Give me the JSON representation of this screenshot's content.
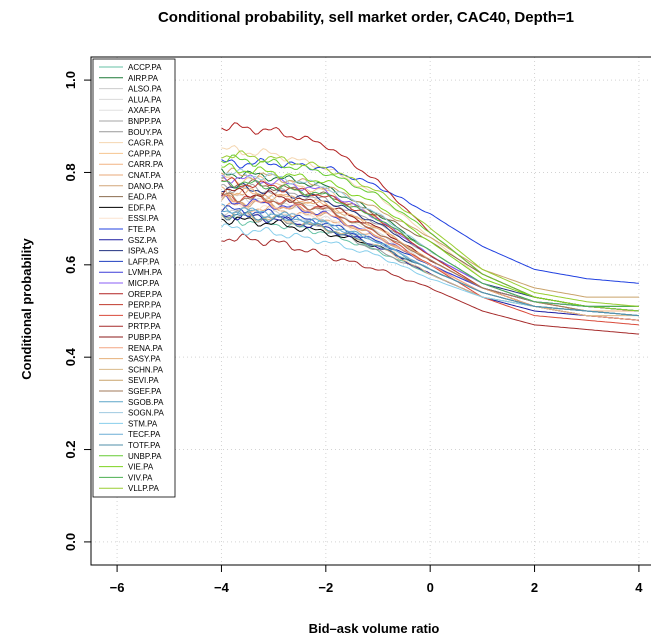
{
  "chart_data": {
    "type": "line",
    "title": "Conditional probability, sell market order, CAC40, Depth=1",
    "xlabel": "Bid–ask volume ratio",
    "ylabel": "Conditional probability",
    "xlim": [
      -6.5,
      4.5
    ],
    "ylim": [
      -0.05,
      1.05
    ],
    "xticks": [
      -6,
      -4,
      -2,
      0,
      2,
      4
    ],
    "yticks": [
      0.0,
      0.2,
      0.4,
      0.6,
      0.8,
      1.0
    ],
    "xtick_labels": [
      "−6",
      "−4",
      "−2",
      "0",
      "2",
      "4"
    ],
    "ytick_labels": [
      "0.0",
      "0.2",
      "0.4",
      "0.6",
      "0.8",
      "1.0"
    ],
    "grid": true,
    "legend_position": "top-left",
    "series": [
      {
        "name": "ACCP.PA",
        "color": "#66c2a5",
        "x": [
          -4,
          -3,
          -2,
          -1,
          0,
          1,
          2,
          3,
          4
        ],
        "y": [
          0.7,
          0.69,
          0.67,
          0.63,
          0.58,
          0.53,
          0.51,
          0.5,
          0.5
        ]
      },
      {
        "name": "AIRP.PA",
        "color": "#1b7837",
        "x": [
          -4,
          -3,
          -2,
          -1,
          0,
          1,
          2,
          3,
          4
        ],
        "y": [
          0.8,
          0.79,
          0.77,
          0.71,
          0.63,
          0.56,
          0.52,
          0.5,
          0.5
        ]
      },
      {
        "name": "ALSO.PA",
        "color": "#cccccc",
        "x": [
          -4,
          -3,
          -2,
          -1,
          0,
          1,
          2,
          3,
          4
        ],
        "y": [
          0.72,
          0.71,
          0.69,
          0.64,
          0.59,
          0.54,
          0.51,
          0.5,
          0.49
        ]
      },
      {
        "name": "ALUA.PA",
        "color": "#d9d9d9",
        "x": [
          -4,
          -3,
          -2,
          -1,
          0,
          1,
          2,
          3,
          4
        ],
        "y": [
          0.75,
          0.74,
          0.72,
          0.67,
          0.6,
          0.54,
          0.51,
          0.5,
          0.49
        ]
      },
      {
        "name": "AXAF.PA",
        "color": "#e0e0e0",
        "x": [
          -4,
          -3,
          -2,
          -1,
          0,
          1,
          2,
          3,
          4
        ],
        "y": [
          0.74,
          0.73,
          0.7,
          0.65,
          0.59,
          0.54,
          0.51,
          0.5,
          0.5
        ]
      },
      {
        "name": "BNPP.PA",
        "color": "#a6a6a6",
        "x": [
          -4,
          -3,
          -2,
          -1,
          0,
          1,
          2,
          3,
          4
        ],
        "y": [
          0.77,
          0.76,
          0.74,
          0.69,
          0.62,
          0.55,
          0.52,
          0.5,
          0.5
        ]
      },
      {
        "name": "BOUY.PA",
        "color": "#999999",
        "x": [
          -4,
          -3,
          -2,
          -1,
          0,
          1,
          2,
          3,
          4
        ],
        "y": [
          0.71,
          0.7,
          0.68,
          0.63,
          0.58,
          0.53,
          0.51,
          0.5,
          0.49
        ]
      },
      {
        "name": "CAGR.PA",
        "color": "#f4d6b0",
        "x": [
          -4,
          -3,
          -2,
          -1,
          0,
          1,
          2,
          3,
          4
        ],
        "y": [
          0.85,
          0.84,
          0.81,
          0.75,
          0.66,
          0.57,
          0.53,
          0.51,
          0.5
        ]
      },
      {
        "name": "CAPP.PA",
        "color": "#f6c48f",
        "x": [
          -4,
          -3,
          -2,
          -1,
          0,
          1,
          2,
          3,
          4
        ],
        "y": [
          0.79,
          0.78,
          0.76,
          0.7,
          0.62,
          0.55,
          0.52,
          0.5,
          0.5
        ]
      },
      {
        "name": "CARR.PA",
        "color": "#f2b482",
        "x": [
          -4,
          -3,
          -2,
          -1,
          0,
          1,
          2,
          3,
          4
        ],
        "y": [
          0.76,
          0.75,
          0.73,
          0.68,
          0.61,
          0.55,
          0.52,
          0.5,
          0.5
        ]
      },
      {
        "name": "CNAT.PA",
        "color": "#e8a878",
        "x": [
          -4,
          -3,
          -2,
          -1,
          0,
          1,
          2,
          3,
          4
        ],
        "y": [
          0.73,
          0.72,
          0.7,
          0.66,
          0.6,
          0.54,
          0.51,
          0.5,
          0.49
        ]
      },
      {
        "name": "DANO.PA",
        "color": "#d2a679",
        "x": [
          -4,
          -3,
          -2,
          -1,
          0,
          1,
          2,
          3,
          4
        ],
        "y": [
          0.74,
          0.73,
          0.71,
          0.66,
          0.6,
          0.54,
          0.51,
          0.5,
          0.49
        ]
      },
      {
        "name": "EAD.PA",
        "color": "#8c6d4f",
        "x": [
          -4,
          -3,
          -2,
          -1,
          0,
          1,
          2,
          3,
          4
        ],
        "y": [
          0.78,
          0.77,
          0.75,
          0.71,
          0.65,
          0.58,
          0.53,
          0.51,
          0.5
        ]
      },
      {
        "name": "EDF.PA",
        "color": "#000000",
        "x": [
          -4,
          -3,
          -2,
          -1,
          0,
          1,
          2,
          3,
          4
        ],
        "y": [
          0.7,
          0.69,
          0.67,
          0.64,
          0.59,
          0.54,
          0.51,
          0.49,
          0.48
        ]
      },
      {
        "name": "ESSI.PA",
        "color": "#fbe3cf",
        "x": [
          -4,
          -3,
          -2,
          -1,
          0,
          1,
          2,
          3,
          4
        ],
        "y": [
          0.73,
          0.72,
          0.7,
          0.65,
          0.59,
          0.54,
          0.51,
          0.5,
          0.49
        ]
      },
      {
        "name": "FTE.PA",
        "color": "#2040e0",
        "x": [
          -4,
          -3,
          -2,
          -1,
          0,
          1,
          2,
          3,
          4
        ],
        "y": [
          0.82,
          0.82,
          0.81,
          0.77,
          0.71,
          0.64,
          0.59,
          0.57,
          0.56
        ]
      },
      {
        "name": "GSZ.PA",
        "color": "#1a1aa0",
        "x": [
          -4,
          -3,
          -2,
          -1,
          0,
          1,
          2,
          3,
          4
        ],
        "y": [
          0.71,
          0.7,
          0.68,
          0.64,
          0.58,
          0.53,
          0.5,
          0.49,
          0.48
        ]
      },
      {
        "name": "ISPA.AS",
        "color": "#203080",
        "x": [
          -4,
          -3,
          -2,
          -1,
          0,
          1,
          2,
          3,
          4
        ],
        "y": [
          0.77,
          0.76,
          0.74,
          0.69,
          0.62,
          0.56,
          0.53,
          0.51,
          0.51
        ]
      },
      {
        "name": "LAFP.PA",
        "color": "#1f3fbf",
        "x": [
          -4,
          -3,
          -2,
          -1,
          0,
          1,
          2,
          3,
          4
        ],
        "y": [
          0.72,
          0.71,
          0.69,
          0.65,
          0.6,
          0.55,
          0.52,
          0.51,
          0.5
        ]
      },
      {
        "name": "LVMH.PA",
        "color": "#3d3dd8",
        "x": [
          -4,
          -3,
          -2,
          -1,
          0,
          1,
          2,
          3,
          4
        ],
        "y": [
          0.74,
          0.73,
          0.71,
          0.66,
          0.6,
          0.55,
          0.52,
          0.51,
          0.5
        ]
      },
      {
        "name": "MICP.PA",
        "color": "#8a5cf5",
        "x": [
          -4,
          -3,
          -2,
          -1,
          0,
          1,
          2,
          3,
          4
        ],
        "y": [
          0.79,
          0.78,
          0.76,
          0.7,
          0.62,
          0.56,
          0.52,
          0.51,
          0.5
        ]
      },
      {
        "name": "OREP.PA",
        "color": "#b22222",
        "x": [
          -4,
          -3,
          -2,
          -1,
          0,
          1,
          2,
          3,
          4
        ],
        "y": [
          0.9,
          0.89,
          0.86,
          0.78,
          0.67,
          0.58,
          0.53,
          0.51,
          0.5
        ]
      },
      {
        "name": "PERP.PA",
        "color": "#c0392b",
        "x": [
          -4,
          -3,
          -2,
          -1,
          0,
          1,
          2,
          3,
          4
        ],
        "y": [
          0.78,
          0.77,
          0.75,
          0.7,
          0.62,
          0.55,
          0.51,
          0.49,
          0.48
        ]
      },
      {
        "name": "PEUP.PA",
        "color": "#d94a3a",
        "x": [
          -4,
          -3,
          -2,
          -1,
          0,
          1,
          2,
          3,
          4
        ],
        "y": [
          0.75,
          0.74,
          0.72,
          0.67,
          0.6,
          0.53,
          0.49,
          0.48,
          0.47
        ]
      },
      {
        "name": "PRTP.PA",
        "color": "#a52a2a",
        "x": [
          -4,
          -3,
          -2,
          -1,
          0,
          1,
          2,
          3,
          4
        ],
        "y": [
          0.66,
          0.65,
          0.62,
          0.59,
          0.55,
          0.5,
          0.47,
          0.46,
          0.45
        ]
      },
      {
        "name": "PUBP.PA",
        "color": "#8b1a1a",
        "x": [
          -4,
          -3,
          -2,
          -1,
          0,
          1,
          2,
          3,
          4
        ],
        "y": [
          0.76,
          0.75,
          0.73,
          0.68,
          0.61,
          0.55,
          0.51,
          0.5,
          0.49
        ]
      },
      {
        "name": "RENA.PA",
        "color": "#f4a582",
        "x": [
          -4,
          -3,
          -2,
          -1,
          0,
          1,
          2,
          3,
          4
        ],
        "y": [
          0.74,
          0.73,
          0.71,
          0.66,
          0.6,
          0.54,
          0.51,
          0.49,
          0.48
        ]
      },
      {
        "name": "SASY.PA",
        "color": "#e6b07a",
        "x": [
          -4,
          -3,
          -2,
          -1,
          0,
          1,
          2,
          3,
          4
        ],
        "y": [
          0.76,
          0.75,
          0.73,
          0.68,
          0.61,
          0.55,
          0.51,
          0.5,
          0.49
        ]
      },
      {
        "name": "SCHN.PA",
        "color": "#dab989",
        "x": [
          -4,
          -3,
          -2,
          -1,
          0,
          1,
          2,
          3,
          4
        ],
        "y": [
          0.71,
          0.7,
          0.68,
          0.64,
          0.58,
          0.53,
          0.51,
          0.49,
          0.49
        ]
      },
      {
        "name": "SEVI.PA",
        "color": "#c9a36b",
        "x": [
          -4,
          -3,
          -2,
          -1,
          0,
          1,
          2,
          3,
          4
        ],
        "y": [
          0.8,
          0.79,
          0.77,
          0.72,
          0.66,
          0.59,
          0.55,
          0.53,
          0.53
        ]
      },
      {
        "name": "SGEF.PA",
        "color": "#a0785a",
        "x": [
          -4,
          -3,
          -2,
          -1,
          0,
          1,
          2,
          3,
          4
        ],
        "y": [
          0.75,
          0.74,
          0.72,
          0.67,
          0.61,
          0.55,
          0.52,
          0.5,
          0.49
        ]
      },
      {
        "name": "SGOB.PA",
        "color": "#5da5c8",
        "x": [
          -4,
          -3,
          -2,
          -1,
          0,
          1,
          2,
          3,
          4
        ],
        "y": [
          0.72,
          0.71,
          0.69,
          0.65,
          0.59,
          0.54,
          0.51,
          0.5,
          0.49
        ]
      },
      {
        "name": "SOGN.PA",
        "color": "#9ecae1",
        "x": [
          -4,
          -3,
          -2,
          -1,
          0,
          1,
          2,
          3,
          4
        ],
        "y": [
          0.8,
          0.79,
          0.77,
          0.71,
          0.63,
          0.56,
          0.52,
          0.51,
          0.5
        ]
      },
      {
        "name": "STM.PA",
        "color": "#87ceeb",
        "x": [
          -4,
          -3,
          -2,
          -1,
          0,
          1,
          2,
          3,
          4
        ],
        "y": [
          0.68,
          0.67,
          0.65,
          0.62,
          0.57,
          0.53,
          0.51,
          0.5,
          0.49
        ]
      },
      {
        "name": "TECF.PA",
        "color": "#6baed6",
        "x": [
          -4,
          -3,
          -2,
          -1,
          0,
          1,
          2,
          3,
          4
        ],
        "y": [
          0.72,
          0.71,
          0.69,
          0.65,
          0.59,
          0.54,
          0.51,
          0.5,
          0.49
        ]
      },
      {
        "name": "TOTF.PA",
        "color": "#4f8fa8",
        "x": [
          -4,
          -3,
          -2,
          -1,
          0,
          1,
          2,
          3,
          4
        ],
        "y": [
          0.71,
          0.7,
          0.68,
          0.64,
          0.59,
          0.54,
          0.51,
          0.5,
          0.49
        ]
      },
      {
        "name": "UNBP.PA",
        "color": "#66cc33",
        "x": [
          -4,
          -3,
          -2,
          -1,
          0,
          1,
          2,
          3,
          4
        ],
        "y": [
          0.83,
          0.82,
          0.8,
          0.75,
          0.67,
          0.58,
          0.53,
          0.51,
          0.51
        ]
      },
      {
        "name": "VIE.PA",
        "color": "#7ed321",
        "x": [
          -4,
          -3,
          -2,
          -1,
          0,
          1,
          2,
          3,
          4
        ],
        "y": [
          0.81,
          0.8,
          0.78,
          0.73,
          0.65,
          0.57,
          0.53,
          0.51,
          0.5
        ]
      },
      {
        "name": "VIV.PA",
        "color": "#4caf50",
        "x": [
          -4,
          -3,
          -2,
          -1,
          0,
          1,
          2,
          3,
          4
        ],
        "y": [
          0.78,
          0.77,
          0.75,
          0.7,
          0.63,
          0.56,
          0.52,
          0.51,
          0.51
        ]
      },
      {
        "name": "VLLP.PA",
        "color": "#9acd32",
        "x": [
          -4,
          -3,
          -2,
          -1,
          0,
          1,
          2,
          3,
          4
        ],
        "y": [
          0.84,
          0.83,
          0.81,
          0.76,
          0.68,
          0.59,
          0.54,
          0.52,
          0.51
        ]
      }
    ]
  }
}
